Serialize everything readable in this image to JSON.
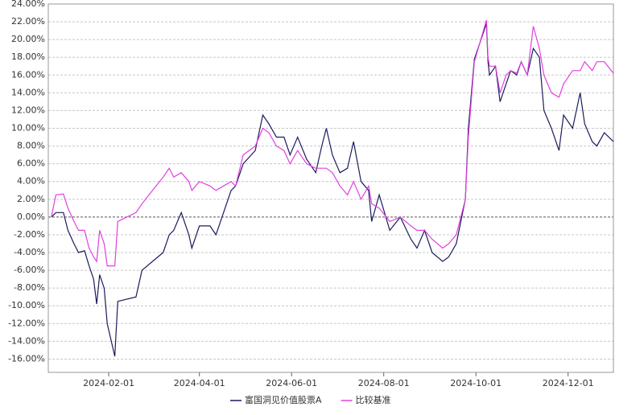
{
  "chart_data": {
    "type": "line",
    "x": [
      "2023-12-25",
      "2023-12-28",
      "2024-01-02",
      "2024-01-05",
      "2024-01-09",
      "2024-01-12",
      "2024-01-16",
      "2024-01-19",
      "2024-01-22",
      "2024-01-24",
      "2024-01-26",
      "2024-01-29",
      "2024-01-31",
      "2024-02-05",
      "2024-02-07",
      "2024-02-19",
      "2024-02-23",
      "2024-03-01",
      "2024-03-08",
      "2024-03-12",
      "2024-03-15",
      "2024-03-20",
      "2024-03-25",
      "2024-03-27",
      "2024-04-01",
      "2024-04-08",
      "2024-04-12",
      "2024-04-17",
      "2024-04-22",
      "2024-04-25",
      "2024-04-30",
      "2024-05-08",
      "2024-05-13",
      "2024-05-17",
      "2024-05-22",
      "2024-05-27",
      "2024-05-31",
      "2024-06-05",
      "2024-06-11",
      "2024-06-17",
      "2024-06-21",
      "2024-06-24",
      "2024-06-28",
      "2024-07-03",
      "2024-07-08",
      "2024-07-12",
      "2024-07-17",
      "2024-07-22",
      "2024-07-24",
      "2024-07-29",
      "2024-08-05",
      "2024-08-12",
      "2024-08-19",
      "2024-08-23",
      "2024-08-28",
      "2024-09-02",
      "2024-09-09",
      "2024-09-13",
      "2024-09-18",
      "2024-09-24",
      "2024-09-26",
      "2024-09-30",
      "2024-10-08",
      "2024-10-09",
      "2024-10-10",
      "2024-10-14",
      "2024-10-17",
      "2024-10-21",
      "2024-10-24",
      "2024-10-28",
      "2024-10-31",
      "2024-11-04",
      "2024-11-08",
      "2024-11-12",
      "2024-11-15",
      "2024-11-20",
      "2024-11-25",
      "2024-11-28",
      "2024-12-04",
      "2024-12-09",
      "2024-12-12",
      "2024-12-17",
      "2024-12-20",
      "2024-12-25",
      "2024-12-31"
    ],
    "series": [
      {
        "name": "富国洞见价值股票A",
        "color": "#1b1b5e",
        "values": [
          0,
          0.5,
          0.5,
          -1.5,
          -3,
          -4,
          -3.8,
          -5.5,
          -7,
          -9.8,
          -6.5,
          -8,
          -12,
          -15.7,
          -9.5,
          -9,
          -6,
          -5,
          -4,
          -2,
          -1.5,
          0.5,
          -2,
          -3.5,
          -1,
          -1,
          -2,
          0.5,
          3,
          3.5,
          6,
          7.5,
          11.5,
          10.5,
          9,
          9,
          7,
          9,
          6.5,
          5,
          8,
          10,
          7,
          5,
          5.5,
          8.5,
          4,
          3,
          -0.5,
          2.5,
          -1.5,
          0,
          -2.5,
          -3.5,
          -1.5,
          -4,
          -5,
          -4.5,
          -3,
          2,
          10,
          17.8,
          21.8,
          17.5,
          16,
          17,
          13,
          15,
          16.5,
          16,
          17.5,
          16,
          19,
          18,
          12,
          10,
          7.5,
          11.5,
          10,
          14,
          10.5,
          8.5,
          8,
          9.5,
          8.5
        ]
      },
      {
        "name": "比较基准",
        "color": "#e23fe0",
        "values": [
          0,
          2.5,
          2.6,
          1,
          -0.5,
          -1.5,
          -1.5,
          -3.5,
          -4.5,
          -5,
          -1.5,
          -3,
          -5.5,
          -5.5,
          -0.5,
          0.5,
          1.5,
          3,
          4.5,
          5.5,
          4.5,
          5,
          4,
          3,
          4,
          3.5,
          3,
          3.5,
          4,
          3.5,
          7,
          8,
          10,
          9.5,
          8,
          7.5,
          6,
          7.5,
          6,
          5.5,
          5.5,
          5.5,
          5,
          3.5,
          2.5,
          4,
          2,
          3.5,
          1.5,
          1,
          -0.5,
          0,
          -1,
          -1.5,
          -1.5,
          -2.5,
          -3.5,
          -3,
          -2,
          2,
          9,
          17.5,
          22.2,
          18,
          17,
          17,
          14,
          16,
          16.5,
          16.2,
          17.5,
          16,
          21.5,
          19,
          16,
          14,
          13.5,
          15,
          16.5,
          16.5,
          17.5,
          16.5,
          17.5,
          17.5,
          16.2
        ]
      }
    ],
    "xlim": [
      "2023-12-23",
      "2024-12-31"
    ],
    "xticks": [
      "2024-02-01",
      "2024-04-01",
      "2024-06-01",
      "2024-08-01",
      "2024-10-01",
      "2024-12-01"
    ],
    "ylim": [
      -17.5,
      24
    ],
    "yticks": [
      {
        "value": -16,
        "label": "-16.00%"
      },
      {
        "value": -14,
        "label": "-14.00%"
      },
      {
        "value": -12,
        "label": "-12.00%"
      },
      {
        "value": -10,
        "label": "-10.00%"
      },
      {
        "value": -8,
        "label": "-8.00%"
      },
      {
        "value": -6,
        "label": "-6.00%"
      },
      {
        "value": -4,
        "label": "-4.00%"
      },
      {
        "value": -2,
        "label": "-2.00%"
      },
      {
        "value": 0,
        "label": "0.00%"
      },
      {
        "value": 2,
        "label": "2.00%"
      },
      {
        "value": 4,
        "label": "4.00%"
      },
      {
        "value": 6,
        "label": "6.00%"
      },
      {
        "value": 8,
        "label": "8.00%"
      },
      {
        "value": 10,
        "label": "10.00%"
      },
      {
        "value": 12,
        "label": "12.00%"
      },
      {
        "value": 14,
        "label": "14.00%"
      },
      {
        "value": 16,
        "label": "16.00%"
      },
      {
        "value": 18,
        "label": "18.00%"
      },
      {
        "value": 20,
        "label": "20.00%"
      },
      {
        "value": 22,
        "label": "22.00%"
      },
      {
        "value": 24,
        "label": "24.00%"
      }
    ],
    "grid": true,
    "legend": "bottom"
  }
}
